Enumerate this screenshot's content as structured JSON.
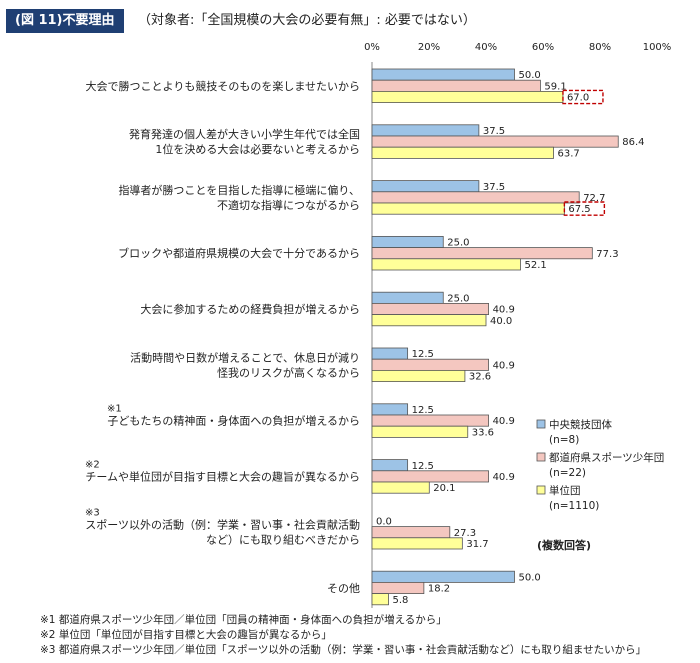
{
  "header": {
    "figure_label": "(図 11)不要理由",
    "subtitle": "（対象者:「全国規模の大会の必要有無」: 必要ではない）"
  },
  "colors": {
    "series_1": "#9dc3e6",
    "series_2": "#f4c7c0",
    "series_3": "#ffff99",
    "highlight": "#c00000",
    "header_bg": "#1f3f73"
  },
  "chart_data": {
    "type": "bar",
    "orientation": "horizontal",
    "xlim": [
      0,
      100
    ],
    "x_ticks": [
      "0%",
      "20%",
      "40%",
      "60%",
      "80%",
      "100%"
    ],
    "grid": false,
    "categories": [
      {
        "label": [
          "大会で勝つことよりも競技そのものを楽しませたいから"
        ],
        "prefix": ""
      },
      {
        "label": [
          "発育発達の個人差が大きい小学生年代では全国",
          "1位を決める大会は必要ないと考えるから"
        ],
        "prefix": ""
      },
      {
        "label": [
          "指導者が勝つことを目指した指導に極端に偏り、",
          "不適切な指導につながるから"
        ],
        "prefix": ""
      },
      {
        "label": [
          "ブロックや都道府県規模の大会で十分であるから"
        ],
        "prefix": ""
      },
      {
        "label": [
          "大会に参加するための経費負担が増えるから"
        ],
        "prefix": ""
      },
      {
        "label": [
          "活動時間や日数が増えることで、休息日が減り",
          "怪我のリスクが高くなるから"
        ],
        "prefix": ""
      },
      {
        "label": [
          "子どもたちの精神面・身体面への負担が増えるから"
        ],
        "prefix": "※1"
      },
      {
        "label": [
          "チームや単位団が目指す目標と大会の趣旨が異なるから"
        ],
        "prefix": "※2"
      },
      {
        "label": [
          "スポーツ以外の活動（例：学業・習い事・社会貢献活動",
          "など）にも取り組むべきだから"
        ],
        "prefix": "※3"
      },
      {
        "label": [
          "その他"
        ],
        "prefix": ""
      }
    ],
    "series": [
      {
        "name": "中央競技団体",
        "n": "(n=8)",
        "values": [
          50.0,
          37.5,
          37.5,
          25.0,
          25.0,
          12.5,
          12.5,
          12.5,
          0.0,
          50.0
        ]
      },
      {
        "name": "都道府県スポーツ少年団",
        "n": "(n=22)",
        "values": [
          59.1,
          86.4,
          72.7,
          77.3,
          40.9,
          40.9,
          40.9,
          40.9,
          27.3,
          18.2
        ]
      },
      {
        "name": "単位団",
        "n": "(n=1110)",
        "values": [
          67.0,
          63.7,
          67.5,
          52.1,
          40.0,
          32.6,
          33.6,
          20.1,
          31.7,
          5.8
        ]
      }
    ],
    "highlighted": [
      {
        "series": 2,
        "category": 0
      },
      {
        "series": 2,
        "category": 2
      }
    ],
    "legend_position": "right",
    "note": "(複数回答)"
  },
  "footnotes": [
    "※1 都道府県スポーツ少年団／単位団「団員の精神面・身体面への負担が増えるから」",
    "※2 単位団「単位団が目指す目標と大会の趣旨が異なるから」",
    "※3 都道府県スポーツ少年団／単位団「スポーツ以外の活動（例：学業・習い事・社会貢献活動など）にも取り組ませたいから」"
  ]
}
